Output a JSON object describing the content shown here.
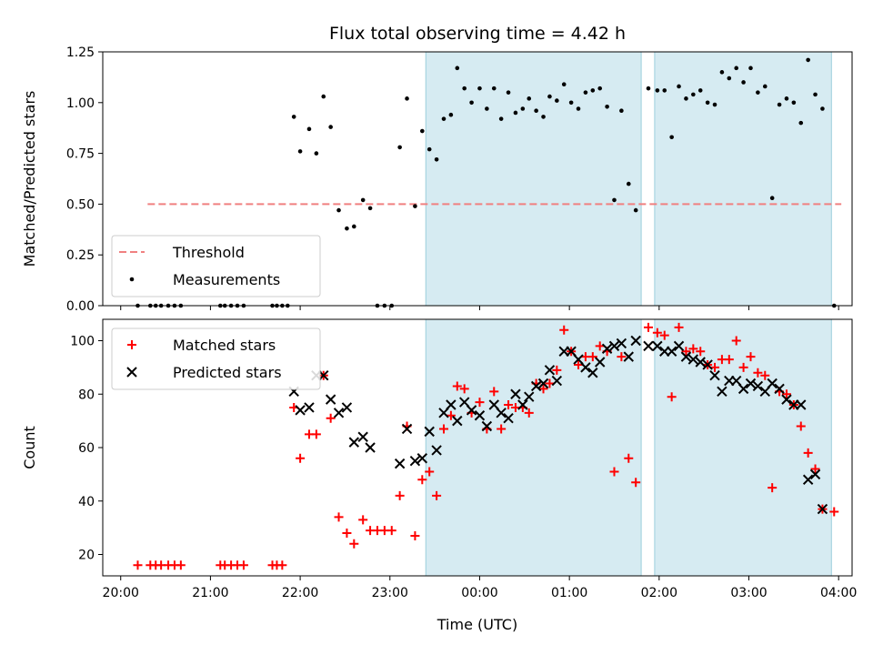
{
  "figure": {
    "title": "Flux total observing time = 4.42 h",
    "xlabel": "Time (UTC)",
    "xticks": [
      "20:00",
      "21:00",
      "22:00",
      "23:00",
      "00:00",
      "01:00",
      "02:00",
      "03:00",
      "04:00"
    ]
  },
  "chart_data": [
    {
      "type": "scatter",
      "panel": "top",
      "ylabel": "Matched/Predicted stars",
      "ylim": [
        0,
        1.25
      ],
      "xlim_hours": [
        19.8,
        28.15
      ],
      "yticks": [
        "0.00",
        "0.25",
        "0.50",
        "0.75",
        "1.00",
        "1.25"
      ],
      "legend": {
        "placement": "lower-left",
        "entries": [
          "Threshold",
          "Measurements"
        ]
      },
      "threshold": {
        "name": "Threshold",
        "y": 0.5,
        "x_range_hours": [
          20.3,
          28.03
        ],
        "color": "#f08080"
      },
      "shaded_intervals_hours": [
        [
          23.4,
          25.8
        ],
        [
          25.95,
          27.92
        ]
      ],
      "series": [
        {
          "name": "Measurements",
          "color": "#000000",
          "points": [
            [
              20.19,
              0
            ],
            [
              20.33,
              0
            ],
            [
              20.39,
              0
            ],
            [
              20.45,
              0
            ],
            [
              20.53,
              0
            ],
            [
              20.6,
              0
            ],
            [
              20.67,
              0
            ],
            [
              21.11,
              0
            ],
            [
              21.16,
              0
            ],
            [
              21.23,
              0
            ],
            [
              21.3,
              0
            ],
            [
              21.37,
              0
            ],
            [
              21.69,
              0
            ],
            [
              21.74,
              0
            ],
            [
              21.8,
              0
            ],
            [
              21.86,
              0
            ],
            [
              21.93,
              0.93
            ],
            [
              22.0,
              0.76
            ],
            [
              22.1,
              0.87
            ],
            [
              22.18,
              0.75
            ],
            [
              22.26,
              1.03
            ],
            [
              22.34,
              0.88
            ],
            [
              22.43,
              0.47
            ],
            [
              22.52,
              0.38
            ],
            [
              22.6,
              0.39
            ],
            [
              22.7,
              0.52
            ],
            [
              22.78,
              0.48
            ],
            [
              22.86,
              0
            ],
            [
              22.94,
              0
            ],
            [
              23.02,
              0
            ],
            [
              23.11,
              0.78
            ],
            [
              23.19,
              1.02
            ],
            [
              23.28,
              0.49
            ],
            [
              23.36,
              0.86
            ],
            [
              23.44,
              0.77
            ],
            [
              23.52,
              0.72
            ],
            [
              23.6,
              0.92
            ],
            [
              23.68,
              0.94
            ],
            [
              23.75,
              1.17
            ],
            [
              23.83,
              1.07
            ],
            [
              23.91,
              1.0
            ],
            [
              24.0,
              1.07
            ],
            [
              24.08,
              0.97
            ],
            [
              24.16,
              1.07
            ],
            [
              24.24,
              0.92
            ],
            [
              24.32,
              1.05
            ],
            [
              24.4,
              0.95
            ],
            [
              24.48,
              0.97
            ],
            [
              24.55,
              1.02
            ],
            [
              24.63,
              0.96
            ],
            [
              24.71,
              0.93
            ],
            [
              24.78,
              1.03
            ],
            [
              24.86,
              1.01
            ],
            [
              24.94,
              1.09
            ],
            [
              25.02,
              1.0
            ],
            [
              25.1,
              0.97
            ],
            [
              25.18,
              1.05
            ],
            [
              25.26,
              1.06
            ],
            [
              25.34,
              1.07
            ],
            [
              25.42,
              0.98
            ],
            [
              25.5,
              0.52
            ],
            [
              25.58,
              0.96
            ],
            [
              25.66,
              0.6
            ],
            [
              25.74,
              0.47
            ],
            [
              25.88,
              1.07
            ],
            [
              25.98,
              1.06
            ],
            [
              26.06,
              1.06
            ],
            [
              26.14,
              0.83
            ],
            [
              26.22,
              1.08
            ],
            [
              26.3,
              1.02
            ],
            [
              26.38,
              1.04
            ],
            [
              26.46,
              1.06
            ],
            [
              26.54,
              1.0
            ],
            [
              26.62,
              0.99
            ],
            [
              26.7,
              1.15
            ],
            [
              26.78,
              1.12
            ],
            [
              26.86,
              1.17
            ],
            [
              26.94,
              1.1
            ],
            [
              27.02,
              1.17
            ],
            [
              27.1,
              1.05
            ],
            [
              27.18,
              1.08
            ],
            [
              27.26,
              0.53
            ],
            [
              27.34,
              0.99
            ],
            [
              27.42,
              1.02
            ],
            [
              27.5,
              1.0
            ],
            [
              27.58,
              0.9
            ],
            [
              27.66,
              1.21
            ],
            [
              27.74,
              1.04
            ],
            [
              27.82,
              0.97
            ],
            [
              27.95,
              0
            ]
          ]
        }
      ]
    },
    {
      "type": "scatter",
      "panel": "bottom",
      "ylabel": "Count",
      "ylim": [
        12,
        108
      ],
      "xlim_hours": [
        19.8,
        28.15
      ],
      "yticks": [
        "20",
        "40",
        "60",
        "80",
        "100"
      ],
      "legend": {
        "placement": "top-left",
        "entries": [
          "Matched stars",
          "Predicted stars"
        ]
      },
      "shaded_intervals_hours": [
        [
          23.4,
          25.8
        ],
        [
          25.95,
          27.92
        ]
      ],
      "series": [
        {
          "name": "Matched stars",
          "marker": "plus",
          "color": "#ff0000",
          "points": [
            [
              20.19,
              16
            ],
            [
              20.33,
              16
            ],
            [
              20.39,
              16
            ],
            [
              20.45,
              16
            ],
            [
              20.53,
              16
            ],
            [
              20.6,
              16
            ],
            [
              20.67,
              16
            ],
            [
              21.11,
              16
            ],
            [
              21.16,
              16
            ],
            [
              21.23,
              16
            ],
            [
              21.3,
              16
            ],
            [
              21.37,
              16
            ],
            [
              21.69,
              16
            ],
            [
              21.74,
              16
            ],
            [
              21.8,
              16
            ],
            [
              21.93,
              75
            ],
            [
              22.0,
              56
            ],
            [
              22.1,
              65
            ],
            [
              22.18,
              65
            ],
            [
              22.26,
              87
            ],
            [
              22.34,
              71
            ],
            [
              22.43,
              34
            ],
            [
              22.52,
              28
            ],
            [
              22.6,
              24
            ],
            [
              22.7,
              33
            ],
            [
              22.78,
              29
            ],
            [
              22.86,
              29
            ],
            [
              22.94,
              29
            ],
            [
              23.02,
              29
            ],
            [
              23.11,
              42
            ],
            [
              23.19,
              68
            ],
            [
              23.28,
              27
            ],
            [
              23.36,
              48
            ],
            [
              23.44,
              51
            ],
            [
              23.52,
              42
            ],
            [
              23.6,
              67
            ],
            [
              23.68,
              72
            ],
            [
              23.75,
              83
            ],
            [
              23.83,
              82
            ],
            [
              23.91,
              73
            ],
            [
              24.0,
              77
            ],
            [
              24.08,
              67
            ],
            [
              24.16,
              81
            ],
            [
              24.24,
              67
            ],
            [
              24.32,
              76
            ],
            [
              24.4,
              75
            ],
            [
              24.48,
              75
            ],
            [
              24.55,
              73
            ],
            [
              24.63,
              84
            ],
            [
              24.71,
              82
            ],
            [
              24.78,
              84
            ],
            [
              24.86,
              89
            ],
            [
              24.94,
              104
            ],
            [
              25.02,
              96
            ],
            [
              25.1,
              91
            ],
            [
              25.18,
              94
            ],
            [
              25.26,
              94
            ],
            [
              25.34,
              98
            ],
            [
              25.42,
              96
            ],
            [
              25.5,
              51
            ],
            [
              25.58,
              94
            ],
            [
              25.66,
              56
            ],
            [
              25.74,
              47
            ],
            [
              25.88,
              105
            ],
            [
              25.98,
              103
            ],
            [
              26.06,
              102
            ],
            [
              26.14,
              79
            ],
            [
              26.22,
              105
            ],
            [
              26.3,
              96
            ],
            [
              26.38,
              97
            ],
            [
              26.46,
              96
            ],
            [
              26.54,
              91
            ],
            [
              26.62,
              90
            ],
            [
              26.7,
              93
            ],
            [
              26.78,
              93
            ],
            [
              26.86,
              100
            ],
            [
              26.94,
              90
            ],
            [
              27.02,
              94
            ],
            [
              27.1,
              88
            ],
            [
              27.18,
              87
            ],
            [
              27.26,
              45
            ],
            [
              27.34,
              81
            ],
            [
              27.42,
              80
            ],
            [
              27.5,
              76
            ],
            [
              27.58,
              68
            ],
            [
              27.66,
              58
            ],
            [
              27.74,
              52
            ],
            [
              27.82,
              37
            ],
            [
              27.95,
              36
            ]
          ]
        },
        {
          "name": "Predicted stars",
          "marker": "x",
          "color": "#000000",
          "points": [
            [
              21.93,
              81
            ],
            [
              22.0,
              74
            ],
            [
              22.1,
              75
            ],
            [
              22.18,
              87
            ],
            [
              22.26,
              87
            ],
            [
              22.34,
              78
            ],
            [
              22.43,
              73
            ],
            [
              22.52,
              75
            ],
            [
              22.6,
              62
            ],
            [
              22.7,
              64
            ],
            [
              22.78,
              60
            ],
            [
              23.11,
              54
            ],
            [
              23.19,
              67
            ],
            [
              23.28,
              55
            ],
            [
              23.36,
              56
            ],
            [
              23.44,
              66
            ],
            [
              23.52,
              59
            ],
            [
              23.6,
              73
            ],
            [
              23.68,
              76
            ],
            [
              23.75,
              70
            ],
            [
              23.83,
              77
            ],
            [
              23.91,
              74
            ],
            [
              24.0,
              72
            ],
            [
              24.08,
              68
            ],
            [
              24.16,
              76
            ],
            [
              24.24,
              73
            ],
            [
              24.32,
              71
            ],
            [
              24.4,
              80
            ],
            [
              24.48,
              76
            ],
            [
              24.55,
              79
            ],
            [
              24.63,
              83
            ],
            [
              24.71,
              84
            ],
            [
              24.78,
              89
            ],
            [
              24.86,
              85
            ],
            [
              24.94,
              96
            ],
            [
              25.02,
              96
            ],
            [
              25.1,
              93
            ],
            [
              25.18,
              90
            ],
            [
              25.26,
              88
            ],
            [
              25.34,
              92
            ],
            [
              25.42,
              97
            ],
            [
              25.5,
              98
            ],
            [
              25.58,
              99
            ],
            [
              25.66,
              94
            ],
            [
              25.74,
              100
            ],
            [
              25.88,
              98
            ],
            [
              25.98,
              98
            ],
            [
              26.06,
              96
            ],
            [
              26.14,
              96
            ],
            [
              26.22,
              98
            ],
            [
              26.3,
              94
            ],
            [
              26.38,
              93
            ],
            [
              26.46,
              92
            ],
            [
              26.54,
              91
            ],
            [
              26.62,
              87
            ],
            [
              26.7,
              81
            ],
            [
              26.78,
              85
            ],
            [
              26.86,
              85
            ],
            [
              26.94,
              82
            ],
            [
              27.02,
              84
            ],
            [
              27.1,
              83
            ],
            [
              27.18,
              81
            ],
            [
              27.26,
              84
            ],
            [
              27.34,
              82
            ],
            [
              27.42,
              78
            ],
            [
              27.5,
              76
            ],
            [
              27.58,
              76
            ],
            [
              27.66,
              48
            ],
            [
              27.74,
              50
            ],
            [
              27.82,
              37
            ]
          ]
        }
      ]
    }
  ]
}
